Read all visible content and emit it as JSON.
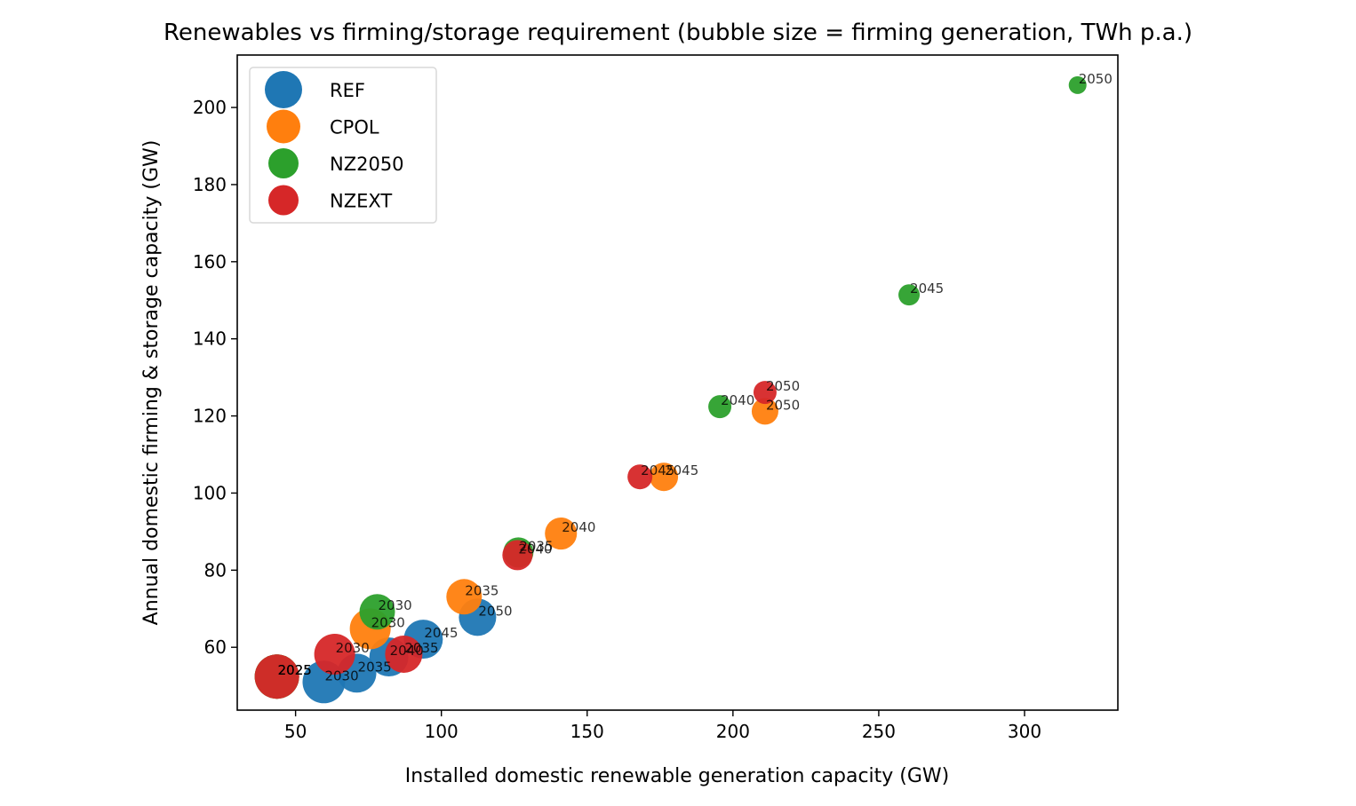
{
  "chart_data": {
    "type": "scatter",
    "title": "Renewables vs firming/storage requirement (bubble size = firming generation, TWh p.a.)",
    "xlabel": "Installed domestic renewable generation capacity (GW)",
    "ylabel": "Annual domestic firming & storage capacity (GW)",
    "xlim": [
      30,
      332
    ],
    "ylim": [
      43.7,
      213.6
    ],
    "xticks": [
      50,
      100,
      150,
      200,
      250,
      300
    ],
    "yticks": [
      60,
      80,
      100,
      120,
      140,
      160,
      180,
      200
    ],
    "grid": false,
    "legend_position": "upper-left",
    "size_meaning": "firming generation, TWh p.a. (estimated from bubble area)",
    "series": [
      {
        "name": "REF",
        "color": "#1f77b4",
        "points": [
          {
            "label": "2025",
            "x": 43.6,
            "y": 52.4,
            "size": 30.0
          },
          {
            "label": "2030",
            "x": 59.7,
            "y": 51.0,
            "size": 27.6
          },
          {
            "label": "2035",
            "x": 71.0,
            "y": 53.3,
            "size": 23.2
          },
          {
            "label": "2040",
            "x": 82.0,
            "y": 57.5,
            "size": 23.2
          },
          {
            "label": "2045",
            "x": 93.8,
            "y": 62.1,
            "size": 23.2
          },
          {
            "label": "2050",
            "x": 112.4,
            "y": 67.8,
            "size": 21.2
          }
        ]
      },
      {
        "name": "CPOL",
        "color": "#ff7f0e",
        "points": [
          {
            "label": "2025",
            "x": 43.6,
            "y": 52.4,
            "size": 30.0
          },
          {
            "label": "2030",
            "x": 75.6,
            "y": 64.8,
            "size": 25.4
          },
          {
            "label": "2035",
            "x": 107.8,
            "y": 73.1,
            "size": 19.2
          },
          {
            "label": "2040",
            "x": 141.0,
            "y": 89.5,
            "size": 15.6
          },
          {
            "label": "2045",
            "x": 176.3,
            "y": 104.2,
            "size": 12.3
          },
          {
            "label": "2050",
            "x": 211.0,
            "y": 121.2,
            "size": 10.8
          }
        ]
      },
      {
        "name": "NZ2050",
        "color": "#2ca02c",
        "points": [
          {
            "label": "2025",
            "x": 43.6,
            "y": 52.4,
            "size": 30.0
          },
          {
            "label": "2030",
            "x": 78.0,
            "y": 69.2,
            "size": 19.2
          },
          {
            "label": "2035",
            "x": 126.4,
            "y": 84.6,
            "size": 13.9
          },
          {
            "label": "2040",
            "x": 195.5,
            "y": 122.4,
            "size": 8.1
          },
          {
            "label": "2045",
            "x": 260.4,
            "y": 151.4,
            "size": 6.9
          },
          {
            "label": "2050",
            "x": 318.2,
            "y": 205.8,
            "size": 4.8
          }
        ]
      },
      {
        "name": "NZEXT",
        "color": "#d62728",
        "points": [
          {
            "label": "2025",
            "x": 43.6,
            "y": 52.4,
            "size": 30.0
          },
          {
            "label": "2030",
            "x": 63.4,
            "y": 58.2,
            "size": 25.4
          },
          {
            "label": "2035",
            "x": 87.1,
            "y": 58.2,
            "size": 21.2
          },
          {
            "label": "2040",
            "x": 126.1,
            "y": 83.9,
            "size": 13.9
          },
          {
            "label": "2045",
            "x": 168.1,
            "y": 104.2,
            "size": 9.4
          },
          {
            "label": "2050",
            "x": 211.0,
            "y": 126.1,
            "size": 8.1
          }
        ]
      }
    ]
  }
}
